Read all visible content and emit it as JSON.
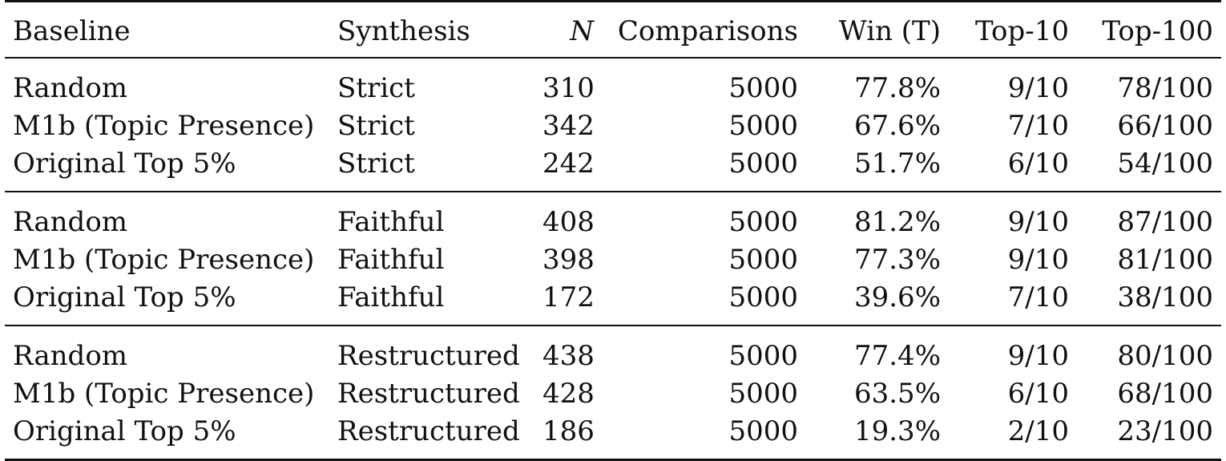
{
  "table": {
    "headers": [
      {
        "key": "baseline",
        "label": "Baseline"
      },
      {
        "key": "synthesis",
        "label": "Synthesis"
      },
      {
        "key": "n",
        "label": "N"
      },
      {
        "key": "comparisons",
        "label": "Comparisons"
      },
      {
        "key": "win",
        "label": "Win (T)"
      },
      {
        "key": "top10",
        "label": "Top-10"
      },
      {
        "key": "top100",
        "label": "Top-100"
      }
    ],
    "groups": [
      {
        "rows": [
          {
            "baseline": "Random",
            "synthesis": "Strict",
            "n": "310",
            "comparisons": "5000",
            "win": "77.8%",
            "top10": "9/10",
            "top100": "78/100"
          },
          {
            "baseline": "M1b (Topic Presence)",
            "synthesis": "Strict",
            "n": "342",
            "comparisons": "5000",
            "win": "67.6%",
            "top10": "7/10",
            "top100": "66/100"
          },
          {
            "baseline": "Original Top 5%",
            "synthesis": "Strict",
            "n": "242",
            "comparisons": "5000",
            "win": "51.7%",
            "top10": "6/10",
            "top100": "54/100"
          }
        ]
      },
      {
        "rows": [
          {
            "baseline": "Random",
            "synthesis": "Faithful",
            "n": "408",
            "comparisons": "5000",
            "win": "81.2%",
            "top10": "9/10",
            "top100": "87/100"
          },
          {
            "baseline": "M1b (Topic Presence)",
            "synthesis": "Faithful",
            "n": "398",
            "comparisons": "5000",
            "win": "77.3%",
            "top10": "9/10",
            "top100": "81/100"
          },
          {
            "baseline": "Original Top 5%",
            "synthesis": "Faithful",
            "n": "172",
            "comparisons": "5000",
            "win": "39.6%",
            "top10": "7/10",
            "top100": "38/100"
          }
        ]
      },
      {
        "rows": [
          {
            "baseline": "Random",
            "synthesis": "Restructured",
            "n": "438",
            "comparisons": "5000",
            "win": "77.4%",
            "top10": "9/10",
            "top100": "80/100"
          },
          {
            "baseline": "M1b (Topic Presence)",
            "synthesis": "Restructured",
            "n": "428",
            "comparisons": "5000",
            "win": "63.5%",
            "top10": "6/10",
            "top100": "68/100"
          },
          {
            "baseline": "Original Top 5%",
            "synthesis": "Restructured",
            "n": "186",
            "comparisons": "5000",
            "win": "19.3%",
            "top10": "2/10",
            "top100": "23/100"
          }
        ]
      }
    ]
  }
}
